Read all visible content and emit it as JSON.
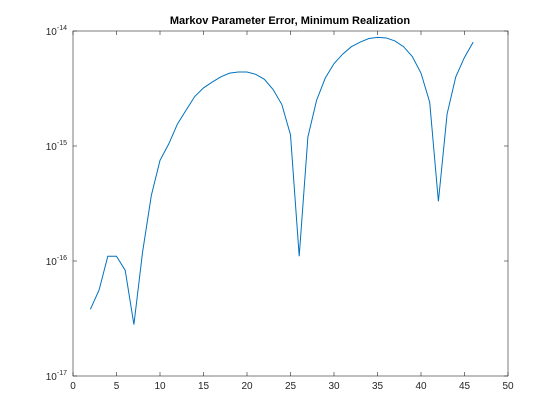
{
  "chart_data": {
    "type": "line",
    "title": "Markov Parameter Error, Minimum Realization",
    "x": [
      2,
      3,
      4,
      5,
      6,
      7,
      8,
      9,
      10,
      11,
      12,
      13,
      14,
      15,
      16,
      17,
      18,
      19,
      20,
      21,
      22,
      23,
      24,
      25,
      26,
      27,
      28,
      29,
      30,
      31,
      32,
      33,
      34,
      35,
      36,
      37,
      38,
      39,
      40,
      41,
      42,
      43,
      44,
      45,
      46
    ],
    "series": [
      {
        "name": "Markov Parameter Error",
        "color": "#0072bd",
        "values": [
          3.8e-17,
          5.6e-17,
          1.1e-16,
          1.1e-16,
          8.3e-17,
          2.8e-17,
          1.2e-16,
          3.7e-16,
          7.5e-16,
          1.04e-15,
          1.55e-15,
          2.05e-15,
          2.7e-15,
          3.2e-15,
          3.6e-15,
          4e-15,
          4.3e-15,
          4.4e-15,
          4.4e-15,
          4.2e-15,
          3.8e-15,
          3.1e-15,
          2.3e-15,
          1.25e-15,
          1.1e-16,
          1.2e-15,
          2.5e-15,
          3.9e-15,
          5.2e-15,
          6.3e-15,
          7.3e-15,
          8e-15,
          8.6e-15,
          8.8e-15,
          8.7e-15,
          8.2e-15,
          7.3e-15,
          6e-15,
          4.3e-15,
          2.4e-15,
          3.3e-16,
          1.9e-15,
          4e-15,
          5.9e-15,
          8e-15
        ]
      }
    ],
    "xlim": [
      0,
      50
    ],
    "xticks": [
      0,
      5,
      10,
      15,
      20,
      25,
      30,
      35,
      40,
      45,
      50
    ],
    "ylim": [
      1e-17,
      1e-14
    ],
    "ylog": true,
    "yticks": [
      {
        "value": 1e-17,
        "label": "10",
        "exponent": "-17"
      },
      {
        "value": 1e-16,
        "label": "10",
        "exponent": "-16"
      },
      {
        "value": 1e-15,
        "label": "10",
        "exponent": "-15"
      },
      {
        "value": 1e-14,
        "label": "10",
        "exponent": "-14"
      }
    ],
    "grid": false
  }
}
